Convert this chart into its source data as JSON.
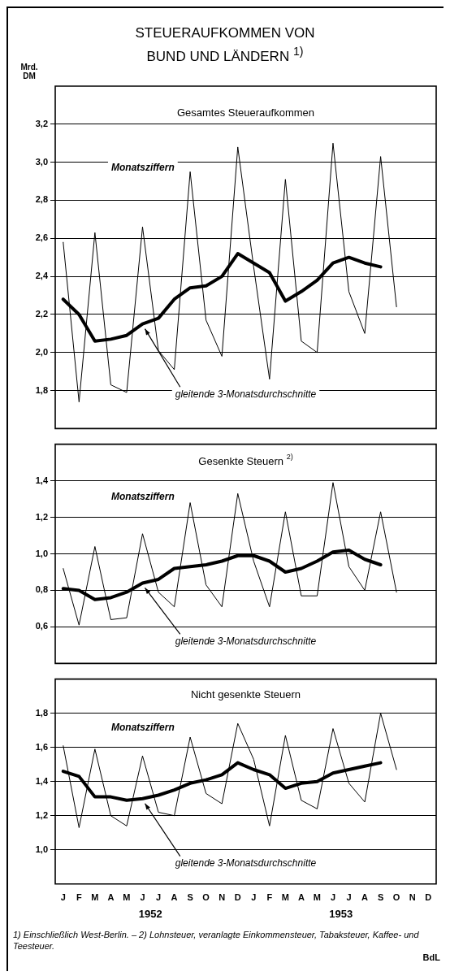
{
  "chart_data": [
    {
      "type": "line",
      "title": "STEUERAUFKOMMEN VON BUND UND LÄNDERN $^{1)}$",
      "subtitle": "Gesamtes Steueraufkommen",
      "ylabel": "Mrd. DM",
      "categories": [
        null,
        null,
        null,
        null,
        null,
        null,
        null,
        null,
        null,
        null,
        null,
        null,
        null,
        null,
        null,
        null,
        null,
        null,
        null,
        null,
        null,
        null,
        null,
        null
      ],
      "series": [
        {
          "name": "Monatsziffern",
          "color": "#000000",
          "values": [
            2.58,
            1.74,
            2.63,
            1.83,
            1.79,
            2.66,
            2.01,
            1.91,
            2.95,
            2.17,
            1.98,
            3.08,
            2.45,
            1.86,
            2.91,
            2.06,
            2.0,
            3.1,
            2.32,
            2.1,
            3.03,
            2.24,
            null,
            null
          ]
        },
        {
          "name": "gleitende 3-Monatsdurchschnitte",
          "color": "#000000",
          "values": [
            2.28,
            2.2,
            2.06,
            2.07,
            2.09,
            2.15,
            2.18,
            2.28,
            2.34,
            2.35,
            2.4,
            2.52,
            2.47,
            2.42,
            2.27,
            2.32,
            2.38,
            2.47,
            2.5,
            2.47,
            2.45,
            null,
            null,
            null
          ]
        }
      ],
      "ylim": [
        1.6,
        3.4
      ],
      "yticks": [
        {
          "value": 1.8,
          "label": "1,8"
        },
        {
          "value": 2.0,
          "label": "2,0"
        },
        {
          "value": 2.2,
          "label": "2,2"
        },
        {
          "value": 2.4,
          "label": "2,4"
        },
        {
          "value": 2.6,
          "label": "2,6"
        },
        {
          "value": 2.8,
          "label": "2,8"
        },
        {
          "value": 3.0,
          "label": "3,0"
        },
        {
          "value": 3.2,
          "label": "3,2"
        }
      ],
      "grid": "y",
      "marker": "none",
      "line_style": "solid",
      "tick_labels": "y"
    },
    {
      "type": "line",
      "title": "Gesenkte Steuern $^{2)}$",
      "categories": [
        null,
        null,
        null,
        null,
        null,
        null,
        null,
        null,
        null,
        null,
        null,
        null,
        null,
        null,
        null,
        null,
        null,
        null,
        null,
        null,
        null,
        null,
        null,
        null
      ],
      "series": [
        {
          "name": "Monatsziffern",
          "color": "#000000",
          "values": [
            0.92,
            0.61,
            1.04,
            0.64,
            0.65,
            1.11,
            0.79,
            0.71,
            1.28,
            0.83,
            0.71,
            1.33,
            0.96,
            0.71,
            1.23,
            0.77,
            0.77,
            1.39,
            0.93,
            0.8,
            1.23,
            0.79,
            null,
            null
          ]
        },
        {
          "name": "gleitende 3-Monatsdurchschnitte",
          "color": "#000000",
          "values": [
            0.81,
            0.8,
            0.75,
            0.76,
            0.79,
            0.84,
            0.86,
            0.92,
            0.93,
            0.94,
            0.96,
            0.99,
            0.99,
            0.96,
            0.9,
            0.92,
            0.96,
            1.01,
            1.02,
            0.97,
            0.94,
            null,
            null,
            null
          ]
        }
      ],
      "ylim": [
        0.4,
        1.6
      ],
      "yticks": [
        {
          "value": 0.6,
          "label": "0,6"
        },
        {
          "value": 0.8,
          "label": "0,8"
        },
        {
          "value": 1.0,
          "label": "1,0"
        },
        {
          "value": 1.2,
          "label": "1,2"
        },
        {
          "value": 1.4,
          "label": "1,4"
        }
      ],
      "grid": "y",
      "marker": "none",
      "line_style": "solid",
      "tick_labels": "y"
    },
    {
      "type": "line",
      "title": "Nicht gesenkte Steuern",
      "categories": [
        "J",
        "F",
        "M",
        "A",
        "M",
        "J",
        "J",
        "A",
        "S",
        "O",
        "N",
        "D",
        "J",
        "F",
        "M",
        "A",
        "M",
        "J",
        "J",
        "A",
        "S",
        "O",
        "N",
        "D"
      ],
      "series": [
        {
          "name": "Monatsziffern",
          "color": "#000000",
          "values": [
            1.61,
            1.13,
            1.59,
            1.2,
            1.14,
            1.55,
            1.22,
            1.2,
            1.66,
            1.33,
            1.27,
            1.74,
            1.53,
            1.14,
            1.67,
            1.29,
            1.24,
            1.71,
            1.39,
            1.28,
            1.8,
            1.47,
            null,
            null
          ]
        },
        {
          "name": "gleitende 3-Monatsdurchschnitte",
          "color": "#000000",
          "values": [
            1.46,
            1.43,
            1.31,
            1.31,
            1.29,
            1.3,
            1.32,
            1.35,
            1.39,
            1.41,
            1.44,
            1.51,
            1.47,
            1.44,
            1.36,
            1.39,
            1.4,
            1.45,
            1.47,
            1.49,
            1.51,
            null,
            null,
            null
          ]
        }
      ],
      "ylim": [
        0.8,
        2.0
      ],
      "yticks": [
        {
          "value": 1.0,
          "label": "1,0"
        },
        {
          "value": 1.2,
          "label": "1,2"
        },
        {
          "value": 1.4,
          "label": "1,4"
        },
        {
          "value": 1.6,
          "label": "1,6"
        },
        {
          "value": 1.8,
          "label": "1,8"
        }
      ],
      "grid": "y",
      "marker": "none",
      "line_style": "solid",
      "annotations": [
        "1952",
        "1953",
        "1) Einschließlich West-Berlin. – 2) Lohnsteuer, veranlagte Einkommensteuer, Tabaksteuer, Kaffee- und Teesteuer.",
        "BdL"
      ]
    }
  ]
}
